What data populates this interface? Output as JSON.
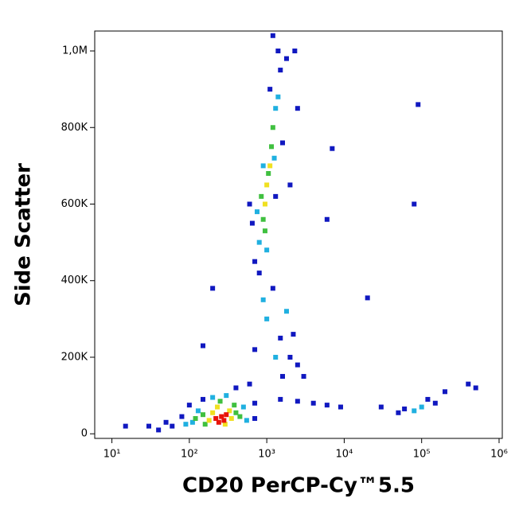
{
  "chart_data": {
    "type": "scatter",
    "xlabel": "CD20 PerCP-Cy™5.5",
    "ylabel": "Side Scatter",
    "xscale": "log",
    "xlim": [
      6,
      1100000
    ],
    "ylim": [
      -12000,
      1052000
    ],
    "xticks": [
      {
        "value": 10,
        "label": "10¹"
      },
      {
        "value": 100,
        "label": "10²"
      },
      {
        "value": 1000,
        "label": "10³"
      },
      {
        "value": 10000,
        "label": "10⁴"
      },
      {
        "value": 100000,
        "label": "10⁵"
      },
      {
        "value": 1000000,
        "label": "10⁶"
      }
    ],
    "yticks": [
      0,
      {
        "value": 200000,
        "label": "200K"
      },
      {
        "value": 400000,
        "label": "400K"
      },
      {
        "value": 600000,
        "label": "600K"
      },
      {
        "value": 800000,
        "label": "800K"
      },
      {
        "value": 1000000,
        "label": "1,0M"
      }
    ],
    "x": [
      60,
      80,
      700,
      400,
      50,
      700,
      100,
      30,
      15,
      600,
      150,
      40,
      110,
      500,
      300,
      130,
      90,
      550,
      200,
      150,
      400,
      160,
      380,
      250,
      120,
      450,
      200,
      330,
      180,
      350,
      230,
      290,
      220,
      260,
      300,
      240,
      280,
      700,
      1500,
      1200,
      650,
      1600,
      1100,
      800,
      1400,
      2000,
      600,
      1800,
      1300,
      800,
      1300,
      1000,
      750,
      1250,
      1400,
      900,
      900,
      1150,
      1050,
      850,
      1200,
      950,
      1000,
      1100,
      950,
      1000,
      1500,
      2000,
      900,
      1200,
      2500,
      3000,
      1800,
      700,
      1300,
      2200,
      1600,
      1500,
      2500,
      4000,
      6000,
      9000,
      60000,
      120000,
      150000,
      50000,
      200000,
      400000,
      500000,
      30000,
      80000,
      100000,
      90000,
      80000,
      7000,
      6000,
      2500,
      2300,
      20000,
      200,
      150
    ],
    "y": [
      20000,
      45000,
      80000,
      120000,
      30000,
      40000,
      75000,
      20000,
      20000,
      130000,
      90000,
      10000,
      30000,
      70000,
      100000,
      60000,
      25000,
      35000,
      95000,
      50000,
      55000,
      25000,
      75000,
      85000,
      40000,
      45000,
      55000,
      60000,
      35000,
      40000,
      70000,
      25000,
      40000,
      45000,
      50000,
      30000,
      35000,
      450000,
      950000,
      1040000,
      550000,
      760000,
      900000,
      420000,
      1000000,
      650000,
      600000,
      980000,
      620000,
      500000,
      850000,
      480000,
      580000,
      720000,
      880000,
      700000,
      560000,
      750000,
      680000,
      620000,
      800000,
      530000,
      650000,
      700000,
      600000,
      300000,
      250000,
      200000,
      350000,
      380000,
      180000,
      150000,
      320000,
      220000,
      200000,
      260000,
      150000,
      90000,
      85000,
      80000,
      75000,
      70000,
      65000,
      90000,
      80000,
      55000,
      110000,
      130000,
      120000,
      70000,
      60000,
      70000,
      860000,
      600000,
      745000,
      560000,
      850000,
      1000000,
      355000,
      380000,
      230000
    ],
    "colors": [
      "#1018c0",
      "#1018c0",
      "#1018c0",
      "#1018c0",
      "#1018c0",
      "#1018c0",
      "#1018c0",
      "#1018c0",
      "#1018c0",
      "#1018c0",
      "#1018c0",
      "#1018c0",
      "#20b0e0",
      "#20b0e0",
      "#20b0e0",
      "#20b0e0",
      "#20b0e0",
      "#20b0e0",
      "#20b0e0",
      "#40c040",
      "#40c040",
      "#40c040",
      "#40c040",
      "#40c040",
      "#40c040",
      "#40c040",
      "#f0e020",
      "#f0e020",
      "#f0e020",
      "#f0e020",
      "#f0e020",
      "#f0e020",
      "#e8140a",
      "#e8140a",
      "#e8140a",
      "#e8140a",
      "#e8140a",
      "#1018c0",
      "#1018c0",
      "#1018c0",
      "#1018c0",
      "#1018c0",
      "#1018c0",
      "#1018c0",
      "#1018c0",
      "#1018c0",
      "#1018c0",
      "#1018c0",
      "#1018c0",
      "#20b0e0",
      "#20b0e0",
      "#20b0e0",
      "#20b0e0",
      "#20b0e0",
      "#20b0e0",
      "#20b0e0",
      "#40c040",
      "#40c040",
      "#40c040",
      "#40c040",
      "#40c040",
      "#40c040",
      "#f0e020",
      "#f0e020",
      "#f0e020",
      "#20b0e0",
      "#1018c0",
      "#1018c0",
      "#20b0e0",
      "#1018c0",
      "#1018c0",
      "#1018c0",
      "#20b0e0",
      "#1018c0",
      "#20b0e0",
      "#1018c0",
      "#1018c0",
      "#1018c0",
      "#1018c0",
      "#1018c0",
      "#1018c0",
      "#1018c0",
      "#1018c0",
      "#1018c0",
      "#1018c0",
      "#1018c0",
      "#1018c0",
      "#1018c0",
      "#1018c0",
      "#1018c0",
      "#20b0e0",
      "#20b0e0",
      "#1018c0",
      "#1018c0",
      "#1018c0",
      "#1018c0",
      "#1018c0",
      "#1018c0",
      "#1018c0",
      "#1018c0",
      "#1018c0"
    ]
  }
}
